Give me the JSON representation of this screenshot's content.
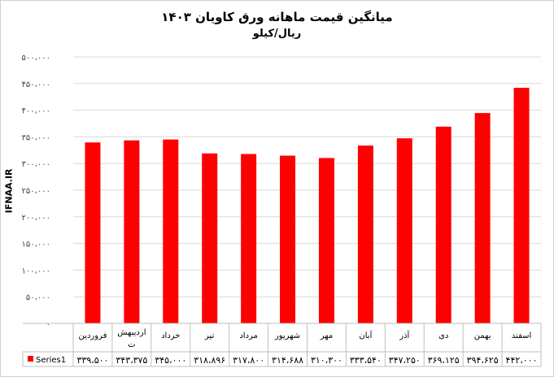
{
  "chart_data": {
    "type": "bar",
    "title": "میانگین قیمت ماهانه ورق کاویان ۱۴۰۳",
    "subtitle": "ریال/کیلو",
    "ylabel": "IFNAA.IR",
    "categories": [
      "فروردین",
      "اردیبهشت",
      "خرداد",
      "تیر",
      "مرداد",
      "شهریور",
      "مهر",
      "آبان",
      "آذر",
      "دی",
      "بهمن",
      "اسفند"
    ],
    "series": [
      {
        "name": "Series1",
        "values": [
          339500,
          343375,
          345000,
          318896,
          317800,
          314688,
          310300,
          333540,
          347250,
          369125,
          394625,
          442000
        ],
        "labels": [
          "۳۳۹،۵۰۰",
          "۳۴۳،۳۷۵",
          "۳۴۵،۰۰۰",
          "۳۱۸،۸۹۶",
          "۳۱۷،۸۰۰",
          "۳۱۴،۶۸۸",
          "۳۱۰،۳۰۰",
          "۳۳۳،۵۴۰",
          "۳۴۷،۲۵۰",
          "۳۶۹،۱۲۵",
          "۳۹۴،۶۲۵",
          "۴۴۲،۰۰۰"
        ]
      }
    ],
    "ylim": [
      0,
      500000
    ],
    "yticks": [
      0,
      50000,
      100000,
      150000,
      200000,
      250000,
      300000,
      350000,
      400000,
      450000,
      500000
    ],
    "ytick_labels": [
      "۰",
      "۵۰،۰۰۰",
      "۱۰۰،۰۰۰",
      "۱۵۰،۰۰۰",
      "۲۰۰،۰۰۰",
      "۲۵۰،۰۰۰",
      "۳۰۰،۰۰۰",
      "۳۵۰،۰۰۰",
      "۴۰۰،۰۰۰",
      "۴۵۰،۰۰۰",
      "۵۰۰،۰۰۰"
    ],
    "grid": true,
    "legend": "in-data-table",
    "colors": {
      "bar": "#ff0000",
      "grid": "#d9d9d9"
    }
  }
}
